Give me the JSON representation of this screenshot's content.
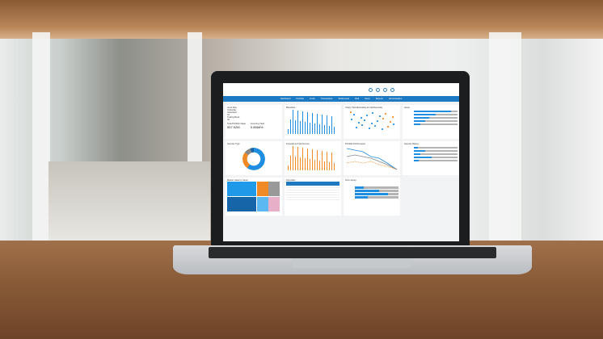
{
  "dashboard": {
    "nav": [
      "Dashboard",
      "Portfolio",
      "Limits",
      "Transactions",
      "Settlements",
      "Risk",
      "News",
      "Reports",
      "Administration"
    ],
    "filters": {
      "as_at_date_label": "As-at date",
      "as_at_date_value": "Yesterday",
      "interested_label": "Interested",
      "interested_value": "All",
      "trading_book_label": "Trading Book",
      "trading_book_value": "All"
    },
    "kpis": [
      {
        "label": "Total Portfolio Value",
        "value": "557.52M"
      },
      {
        "label": "Incoming Yield",
        "value": "0.8666%"
      }
    ],
    "panels": [
      "Maturities",
      "Yearly Yield (Excluding At Call Deposits)",
      "Issuer",
      "Security Type",
      "Forecast Accrual Income",
      "Portfolio Performance",
      "Security Rating",
      "Market value by issuer",
      "Securities",
      "Term Group"
    ],
    "colors": {
      "nav": "#1c78c0",
      "primary_series": "#1f8de0",
      "secondary_series": "#f08a24",
      "track": "#b4b4b4"
    },
    "issuer_fill": [
      0.85,
      0.5,
      0.35,
      0.25,
      0.15
    ],
    "rating_fill": [
      0.1,
      0.25,
      0.15,
      0.4,
      0.12
    ],
    "term_fill": [
      0.2,
      0.55,
      0.75,
      0.3
    ]
  }
}
